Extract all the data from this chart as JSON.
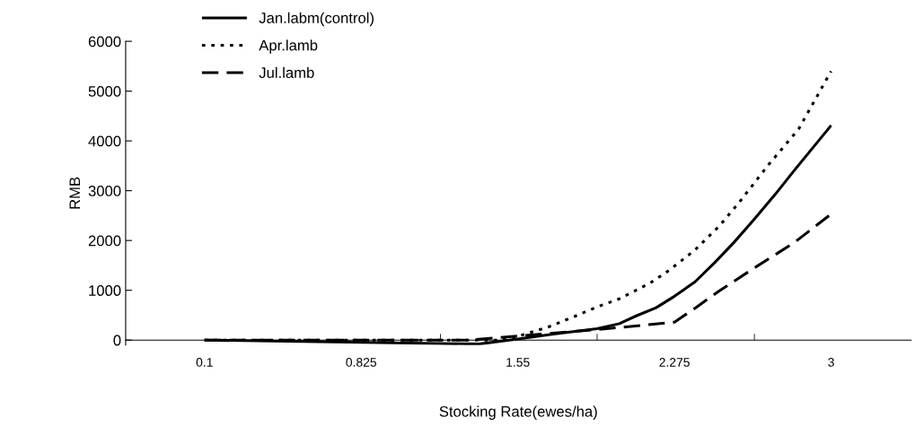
{
  "chart_data": {
    "type": "line",
    "xlabel": "Stocking Rate(ewes/ha)",
    "ylabel": "RMB",
    "xlim": [
      -0.265,
      3.37
    ],
    "xticks": [
      0.1,
      0.825,
      1.55,
      2.275,
      3,
      {
        "value": 1.192,
        "label": null
      },
      {
        "value": 1.917,
        "label": null
      },
      {
        "value": 2.645,
        "label": null
      }
    ],
    "ylim": [
      -100,
      6000
    ],
    "yticks": [
      0,
      1000,
      2000,
      3000,
      4000,
      5000,
      6000
    ],
    "grid": false,
    "legend": "top left",
    "marker": "none",
    "series": [
      {
        "name": "Jan.labm(control)",
        "color": "#000000",
        "line_style": "solid",
        "x": [
          0.1,
          1.18,
          1.37,
          1.55,
          1.715,
          1.917,
          2.02,
          2.1,
          2.19,
          2.275,
          2.37,
          2.46,
          2.55,
          2.645,
          2.74,
          2.83,
          3.0
        ],
        "values": [
          0,
          -70,
          -80,
          20,
          120,
          230,
          330,
          490,
          650,
          880,
          1170,
          1550,
          1960,
          2430,
          2920,
          3410,
          4310
        ]
      },
      {
        "name": "Apr.lamb",
        "color": "#000000",
        "line_style": "dotted",
        "x": [
          0.1,
          1.46,
          1.53,
          1.69,
          1.81,
          1.92,
          2.02,
          2.16,
          2.25,
          2.37,
          2.48,
          2.57,
          2.71,
          2.85,
          3.0
        ],
        "values": [
          0,
          0,
          50,
          260,
          470,
          670,
          830,
          1140,
          1400,
          1810,
          2280,
          2740,
          3520,
          4240,
          5400
        ]
      },
      {
        "name": "Jul.lamb",
        "color": "#000000",
        "line_style": "dashed",
        "x": [
          0.1,
          1.32,
          1.917,
          2.275,
          2.37,
          2.48,
          2.645,
          2.83,
          3.0
        ],
        "values": [
          0,
          0,
          210,
          360,
          640,
          980,
          1450,
          1960,
          2530
        ]
      }
    ]
  }
}
